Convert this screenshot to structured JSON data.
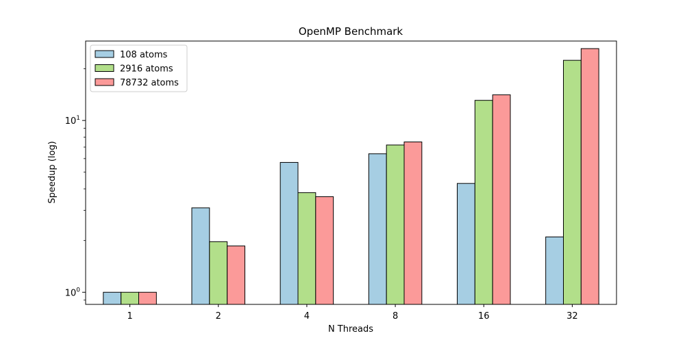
{
  "chart_data": {
    "type": "bar",
    "title": "OpenMP Benchmark",
    "xlabel": "N Threads",
    "ylabel": "Speedup (log)",
    "yscale": "log",
    "ylim": [
      0.85,
      29
    ],
    "yticks": [
      {
        "value": 1,
        "base": "10",
        "exp": "0"
      },
      {
        "value": 10,
        "base": "10",
        "exp": "1"
      }
    ],
    "categories": [
      "1",
      "2",
      "4",
      "8",
      "16",
      "32"
    ],
    "series": [
      {
        "name": "108 atoms",
        "color": "#a6cee3",
        "values": [
          1.0,
          3.1,
          5.7,
          6.4,
          4.3,
          2.1
        ]
      },
      {
        "name": "2916 atoms",
        "color": "#b2df8a",
        "values": [
          1.0,
          1.97,
          3.8,
          7.2,
          13.1,
          22.4
        ]
      },
      {
        "name": "78732 atoms",
        "color": "#fb9a99",
        "values": [
          1.0,
          1.86,
          3.6,
          7.5,
          14.1,
          26.2
        ]
      }
    ],
    "legend": "top-left",
    "grid": false
  }
}
